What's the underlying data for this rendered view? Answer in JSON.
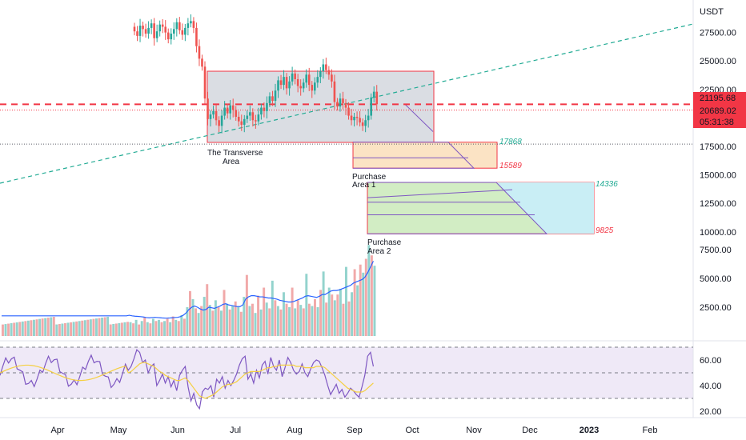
{
  "chart_data": {
    "type": "candlestick",
    "currency": "USDT",
    "price_ticks": [
      27500,
      25000,
      22500,
      17500,
      15000,
      12500,
      10000,
      7500,
      5000,
      2500
    ],
    "price_tick_labels": [
      "27500.00",
      "25000.00",
      "22500.00",
      "17500.00",
      "15000.00",
      "12500.00",
      "10000.00",
      "7500.00",
      "5000.00",
      "2500.00"
    ],
    "volume_scale_ticks": [
      7500,
      5000,
      2500
    ],
    "rsi_ticks": [
      60,
      40,
      20
    ],
    "rsi_tick_labels": [
      "60.00",
      "40.00",
      "20.00"
    ],
    "rsi_bands": [
      70,
      50,
      30
    ],
    "x_labels": [
      "Apr",
      "May",
      "Jun",
      "Jul",
      "Aug",
      "Sep",
      "Oct",
      "Nov",
      "Dec",
      "2023",
      "Feb"
    ],
    "price_badges": [
      {
        "label": "21195.68",
        "value": 21195.68,
        "color": "#f23645"
      },
      {
        "label": "20689.02",
        "value": 20689.02,
        "color": "#f23645"
      },
      {
        "label": "05:31:38",
        "value": 20689.02,
        "color": "#f23645"
      }
    ],
    "horizontal_lines": [
      {
        "value": 21195.68,
        "color": "#f23645",
        "style": "dashed"
      },
      {
        "value": 20689.02,
        "color": "#f23645",
        "style": "dotted"
      },
      {
        "value": 17700,
        "color": "#5d606b",
        "style": "dotted"
      }
    ],
    "trendline": {
      "from": {
        "date_index": 0,
        "value": 14200
      },
      "to": {
        "date_index": 294,
        "value": 28200
      },
      "color": "#22ab94"
    },
    "zones": [
      {
        "name": "The Transverse Area",
        "top": 24100,
        "bottom": 17850,
        "fill": "#d1d4dc",
        "border": "#f23645"
      },
      {
        "name": "Purchase Area 1",
        "top": 17868,
        "bottom": 15589,
        "fill": "#fbe3c4",
        "border": "#f23645"
      },
      {
        "name": "Purchase Area 2",
        "top": 14336,
        "bottom": 9825,
        "fill": "#d2edc4",
        "border": "#f23645"
      }
    ],
    "annotations": [
      {
        "text": "The Transverse",
        "line2": "Area"
      },
      {
        "text": "Purchase",
        "line2": "Area 1"
      },
      {
        "text": "Purchase",
        "line2": "Area 2"
      },
      {
        "text": "17868",
        "color": "#22ab94"
      },
      {
        "text": "15589",
        "color": "#f23645"
      },
      {
        "text": "14336",
        "color": "#22ab94"
      },
      {
        "text": "9825",
        "color": "#f23645"
      }
    ],
    "colors": {
      "up": "#26a69a",
      "down": "#ef5350",
      "volume_ma": "#2962ff",
      "rsi": "#7e57c2",
      "rsi_ma": "#f5d042"
    },
    "candles_close": [
      27600,
      27200,
      28100,
      27800,
      27400,
      27900,
      28300,
      27000,
      27600,
      28200,
      28000,
      27500,
      26900,
      27400,
      27800,
      28400,
      27700,
      27300,
      27900,
      28300,
      28500,
      27900,
      26300,
      25200,
      24500,
      21700,
      19900,
      20300,
      20600,
      19800,
      19300,
      20200,
      20900,
      20400,
      21100,
      20700,
      20100,
      19700,
      19400,
      19900,
      20200,
      20500,
      19800,
      19700,
      20300,
      20900,
      20600,
      21300,
      21900,
      21500,
      22400,
      23300,
      22900,
      23600,
      22600,
      23200,
      23900,
      23400,
      22800,
      22600,
      23100,
      23800,
      22900,
      22400,
      23100,
      23600,
      24100,
      24700,
      24200,
      23800,
      23200,
      21400,
      21000,
      21700,
      21300,
      20900,
      20200,
      19800,
      20100,
      20000,
      19600,
      19300,
      19800,
      20200,
      21800,
      22300,
      21200
    ],
    "volume": [
      1200,
      1100,
      1400,
      1000,
      1300,
      1600,
      1200,
      1100,
      1500,
      1300,
      1400,
      1200,
      1300,
      1500,
      1200,
      1700,
      1400,
      1300,
      1800,
      1500,
      2500,
      3900,
      3200,
      2400,
      2000,
      2600,
      3400,
      4500,
      2700,
      2200,
      3100,
      2500,
      2200,
      4000,
      2800,
      2300,
      2600,
      3000,
      2500,
      2100,
      3400,
      5300,
      2600,
      2800,
      2000,
      3500,
      2300,
      4200,
      2900,
      2400,
      4800,
      3100,
      2600,
      2300,
      3800,
      2800,
      2500,
      4200,
      2400,
      3100,
      2700,
      2400,
      5400,
      2800,
      2600,
      3200,
      2500,
      4000,
      5600,
      2900,
      4200,
      3600,
      3100,
      3600,
      4100,
      2800,
      6000,
      3000,
      3800,
      5800,
      4400,
      6200,
      5500,
      6700,
      7900,
      7000,
      6100
    ],
    "volume_ma": [
      1800,
      1750,
      1720,
      1700,
      1680,
      1650,
      1600,
      1580,
      1600,
      1620,
      1600,
      1580,
      1560,
      1550,
      1560,
      1580,
      1600,
      1620,
      1680,
      1800,
      2000,
      2300,
      2500,
      2600,
      2500,
      2350,
      2250,
      2300,
      2500,
      2450,
      2400,
      2500,
      2600,
      2750,
      2800,
      2700,
      2650,
      2600,
      2550,
      2550,
      2700,
      3200,
      3400,
      3500,
      3500,
      3450,
      3400,
      3400,
      3350,
      3300,
      3300,
      3250,
      3200,
      3100,
      3050,
      3000,
      2950,
      2950,
      3000,
      3100,
      3200,
      3300,
      3450,
      3500,
      3450,
      3400,
      3350,
      3450,
      3600,
      3600,
      3750,
      3900,
      3950,
      3950,
      4000,
      4100,
      4200,
      4300,
      4400,
      4600,
      4700,
      4800,
      4900,
      5100,
      5500,
      6000,
      6500
    ],
    "rsi": [
      52,
      55,
      61,
      68,
      66,
      58,
      60,
      50,
      55,
      57,
      40,
      44,
      49,
      42,
      47,
      39,
      44,
      36,
      48,
      52,
      55,
      39,
      28,
      34,
      25,
      22,
      35,
      38,
      37,
      40,
      31,
      45,
      42,
      47,
      38,
      44,
      40,
      44,
      49,
      56,
      61,
      63,
      45,
      49,
      42,
      52,
      46,
      56,
      59,
      49,
      62,
      55,
      52,
      60,
      47,
      54,
      62,
      58,
      52,
      49,
      51,
      57,
      50,
      47,
      53,
      58,
      60,
      59,
      54,
      48,
      40,
      33,
      37,
      41,
      34,
      37,
      31,
      34,
      38,
      36,
      33,
      31,
      39,
      48,
      63,
      66,
      55
    ],
    "rsi_ma": [
      50,
      51,
      53,
      55,
      57,
      58,
      58,
      57,
      56,
      55,
      53,
      51,
      50,
      48,
      47,
      46,
      45,
      44,
      44,
      45,
      46,
      44,
      41,
      38,
      35,
      32,
      31,
      30,
      31,
      32,
      33,
      35,
      37,
      39,
      40,
      41,
      41,
      42,
      43,
      45,
      47,
      49,
      50,
      51,
      51,
      51,
      51,
      52,
      53,
      54,
      54,
      55,
      55,
      56,
      56,
      56,
      56,
      56,
      56,
      55,
      55,
      55,
      54,
      54,
      54,
      54,
      55,
      55,
      55,
      54,
      52,
      50,
      48,
      46,
      44,
      42,
      40,
      38,
      37,
      36,
      35,
      35,
      35,
      36,
      38,
      40,
      42
    ]
  }
}
